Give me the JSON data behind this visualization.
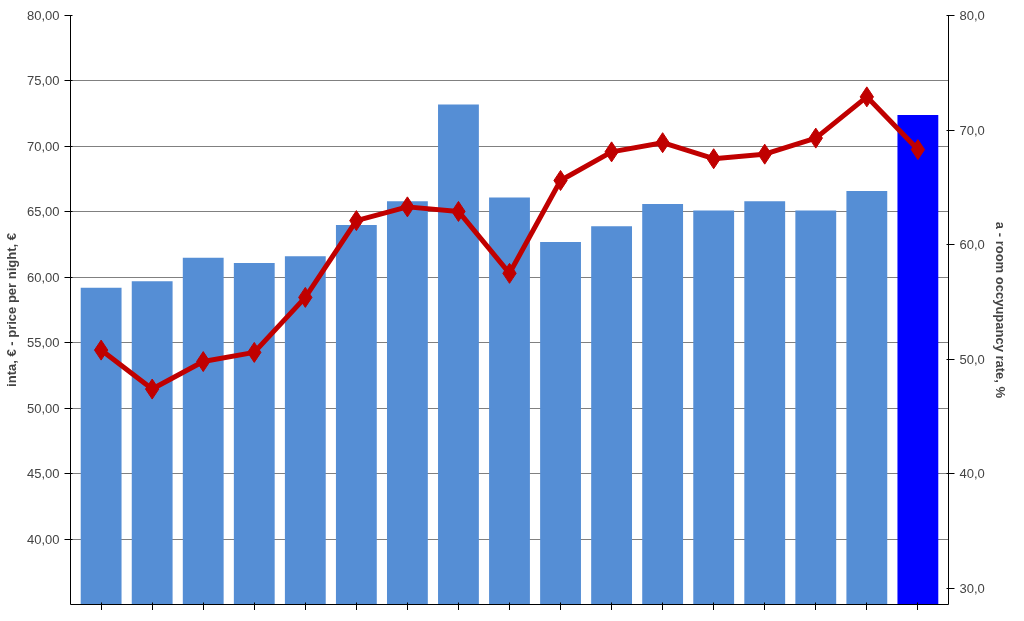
{
  "chart_data": {
    "type": "bar",
    "categories": [
      null,
      null,
      null,
      null,
      null,
      null,
      null,
      null,
      null,
      null,
      null,
      null,
      null,
      null,
      null,
      null,
      null
    ],
    "ylabel": "inta, € - price per night, €",
    "y2label": "a - room occyupancy rate, %",
    "ylim": [
      35,
      80
    ],
    "yticks": [
      {
        "value": 40,
        "label": "40,00"
      },
      {
        "value": 45,
        "label": "45,00"
      },
      {
        "value": 50,
        "label": "50,00"
      },
      {
        "value": 55,
        "label": "55,00"
      },
      {
        "value": 60,
        "label": "60,00"
      },
      {
        "value": 65,
        "label": "65,00"
      },
      {
        "value": 70,
        "label": "70,00"
      },
      {
        "value": 75,
        "label": "75,00"
      },
      {
        "value": 80,
        "label": "80,00"
      }
    ],
    "y2lim": [
      28.6,
      80
    ],
    "y2ticks": [
      {
        "value": 30,
        "label": "30,0"
      },
      {
        "value": 40,
        "label": "40,0"
      },
      {
        "value": 50,
        "label": "50,0"
      },
      {
        "value": 60,
        "label": "60,0"
      },
      {
        "value": 70,
        "label": "70,0"
      },
      {
        "value": 80,
        "label": "80,0"
      }
    ],
    "grid": "y",
    "series": [
      {
        "colors": [
          "#558ed5",
          "#558ed5",
          "#558ed5",
          "#558ed5",
          "#558ed5",
          "#558ed5",
          "#558ed5",
          "#558ed5",
          "#558ed5",
          "#558ed5",
          "#558ed5",
          "#558ed5",
          "#558ed5",
          "#558ed5",
          "#558ed5",
          "#558ed5",
          "#0000ff"
        ],
        "values": [
          59.2,
          59.7,
          61.5,
          61.1,
          61.6,
          64.0,
          65.8,
          73.2,
          66.1,
          62.7,
          63.9,
          65.6,
          65.1,
          65.8,
          65.1,
          66.6,
          72.4
        ]
      },
      {
        "type": "line",
        "axis": "y2",
        "color": "#c00000",
        "marker": "diamond",
        "values": [
          50.8,
          47.4,
          49.8,
          50.6,
          55.4,
          62.1,
          63.3,
          62.9,
          57.5,
          65.6,
          68.1,
          68.9,
          67.5,
          67.9,
          69.3,
          72.9,
          68.3
        ]
      }
    ]
  }
}
